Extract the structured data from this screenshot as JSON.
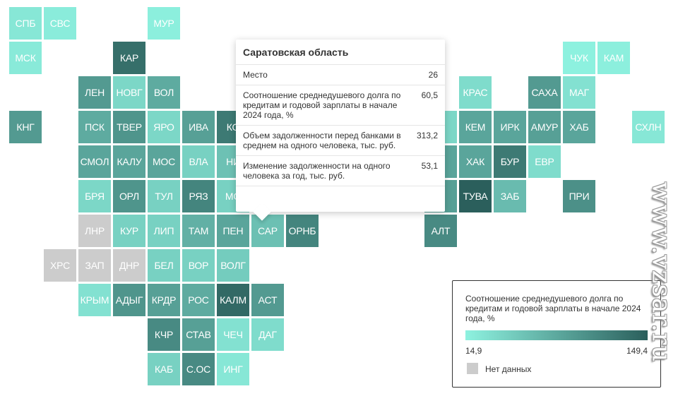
{
  "map": {
    "min_value": 14.9,
    "max_value": 149.4,
    "color_low": "#8ef2e0",
    "color_high": "#2b5f5c",
    "nodata_color": "#cccccc",
    "selected_region": "САР",
    "tiles": [
      {
        "code": "СПБ",
        "col": 0,
        "row": 0,
        "value": 25
      },
      {
        "code": "СВС",
        "col": 1,
        "row": 0,
        "value": 20
      },
      {
        "code": "МУР",
        "col": 4,
        "row": 0,
        "value": 18
      },
      {
        "code": "МСК",
        "col": 0,
        "row": 1,
        "value": 22
      },
      {
        "code": "КАР",
        "col": 3,
        "row": 1,
        "value": 135
      },
      {
        "code": "ЧУК",
        "col": 16,
        "row": 1,
        "value": 16
      },
      {
        "code": "КАМ",
        "col": 17,
        "row": 1,
        "value": 18
      },
      {
        "code": "ЛЕН",
        "col": 2,
        "row": 2,
        "value": 95
      },
      {
        "code": "НОВГ",
        "col": 3,
        "row": 2,
        "value": 40
      },
      {
        "code": "ВОЛ",
        "col": 4,
        "row": 2,
        "value": 80
      },
      {
        "code": "КРАС",
        "col": 13,
        "row": 2,
        "value": 35
      },
      {
        "code": "САХА",
        "col": 15,
        "row": 2,
        "value": 95
      },
      {
        "code": "МАГ",
        "col": 16,
        "row": 2,
        "value": 30
      },
      {
        "code": "КНГ",
        "col": 0,
        "row": 3,
        "value": 95
      },
      {
        "code": "ПСК",
        "col": 2,
        "row": 3,
        "value": 80
      },
      {
        "code": "ТВЕР",
        "col": 3,
        "row": 3,
        "value": 100
      },
      {
        "code": "ЯРО",
        "col": 4,
        "row": 3,
        "value": 40
      },
      {
        "code": "ИВА",
        "col": 5,
        "row": 3,
        "value": 90
      },
      {
        "code": "КО",
        "col": 6,
        "row": 3,
        "value": 125
      },
      {
        "code": "М",
        "col": 12,
        "row": 3,
        "value": 40
      },
      {
        "code": "КЕМ",
        "col": 13,
        "row": 3,
        "value": 85
      },
      {
        "code": "ИРК",
        "col": 14,
        "row": 3,
        "value": 85
      },
      {
        "code": "АМУР",
        "col": 15,
        "row": 3,
        "value": 90
      },
      {
        "code": "ХАБ",
        "col": 16,
        "row": 3,
        "value": 85
      },
      {
        "code": "СХЛН",
        "col": 18,
        "row": 3,
        "value": 25
      },
      {
        "code": "СМОЛ",
        "col": 2,
        "row": 4,
        "value": 85
      },
      {
        "code": "КАЛУ",
        "col": 3,
        "row": 4,
        "value": 85
      },
      {
        "code": "МОС",
        "col": 4,
        "row": 4,
        "value": 85
      },
      {
        "code": "ВЛА",
        "col": 5,
        "row": 4,
        "value": 45
      },
      {
        "code": "НИ",
        "col": 6,
        "row": 4,
        "value": 60
      },
      {
        "code": "О",
        "col": 12,
        "row": 4,
        "value": 85
      },
      {
        "code": "ХАК",
        "col": 13,
        "row": 4,
        "value": 85
      },
      {
        "code": "БУР",
        "col": 14,
        "row": 4,
        "value": 125
      },
      {
        "code": "ЕВР",
        "col": 15,
        "row": 4,
        "value": 35
      },
      {
        "code": "БРЯ",
        "col": 2,
        "row": 5,
        "value": 40
      },
      {
        "code": "ОРЛ",
        "col": 3,
        "row": 5,
        "value": 100
      },
      {
        "code": "ТУЛ",
        "col": 4,
        "row": 5,
        "value": 45
      },
      {
        "code": "РЯЗ",
        "col": 5,
        "row": 5,
        "value": 115
      },
      {
        "code": "МО",
        "col": 6,
        "row": 5,
        "value": 45
      },
      {
        "code": "К",
        "col": 12,
        "row": 5,
        "value": 90
      },
      {
        "code": "ТУВА",
        "col": 13,
        "row": 5,
        "value": 149.4
      },
      {
        "code": "ЗАБ",
        "col": 14,
        "row": 5,
        "value": 65
      },
      {
        "code": "ПРИ",
        "col": 16,
        "row": 5,
        "value": 105
      },
      {
        "code": "ЛНР",
        "col": 2,
        "row": 6,
        "value": null
      },
      {
        "code": "КУР",
        "col": 3,
        "row": 6,
        "value": 45
      },
      {
        "code": "ЛИП",
        "col": 4,
        "row": 6,
        "value": 45
      },
      {
        "code": "ТАМ",
        "col": 5,
        "row": 6,
        "value": 75
      },
      {
        "code": "ПЕН",
        "col": 6,
        "row": 6,
        "value": 85
      },
      {
        "code": "САР",
        "col": 7,
        "row": 6,
        "value": 60.5
      },
      {
        "code": "ОРНБ",
        "col": 8,
        "row": 6,
        "value": 115
      },
      {
        "code": "АЛТ",
        "col": 12,
        "row": 6,
        "value": 110
      },
      {
        "code": "ХРС",
        "col": 1,
        "row": 7,
        "value": null
      },
      {
        "code": "ЗАП",
        "col": 2,
        "row": 7,
        "value": null
      },
      {
        "code": "ДНР",
        "col": 3,
        "row": 7,
        "value": null
      },
      {
        "code": "БЕЛ",
        "col": 4,
        "row": 7,
        "value": 45
      },
      {
        "code": "ВОР",
        "col": 5,
        "row": 7,
        "value": 45
      },
      {
        "code": "ВОЛГ",
        "col": 6,
        "row": 7,
        "value": 50
      },
      {
        "code": "КРЫМ",
        "col": 2,
        "row": 8,
        "value": 30
      },
      {
        "code": "АДЫГ",
        "col": 3,
        "row": 8,
        "value": 100
      },
      {
        "code": "КРДР",
        "col": 4,
        "row": 8,
        "value": 90
      },
      {
        "code": "РОС",
        "col": 5,
        "row": 8,
        "value": 80
      },
      {
        "code": "КАЛМ",
        "col": 6,
        "row": 8,
        "value": 140
      },
      {
        "code": "АСТ",
        "col": 7,
        "row": 8,
        "value": 95
      },
      {
        "code": "КЧР",
        "col": 4,
        "row": 9,
        "value": 110
      },
      {
        "code": "СТАВ",
        "col": 5,
        "row": 9,
        "value": 90
      },
      {
        "code": "ЧЕЧ",
        "col": 6,
        "row": 9,
        "value": 30
      },
      {
        "code": "ДАГ",
        "col": 7,
        "row": 9,
        "value": 35
      },
      {
        "code": "КАБ",
        "col": 4,
        "row": 10,
        "value": 45
      },
      {
        "code": "С.ОС",
        "col": 5,
        "row": 10,
        "value": 110
      },
      {
        "code": "ИНГ",
        "col": 6,
        "row": 10,
        "value": 25
      }
    ]
  },
  "tooltip": {
    "title": "Саратовская область",
    "rows": [
      {
        "label": "Место",
        "value": "26"
      },
      {
        "label": "Соотношение среднедушевого долга по кредитам и годовой зарплаты в начале 2024 года, %",
        "value": "60,5"
      },
      {
        "label": "Объем задолженности перед банками в среднем на одного человека, тыс. руб.",
        "value": "313,2"
      },
      {
        "label": "Изменение задолженности на одного человека за год, тыс. руб.",
        "value": "53,1"
      }
    ]
  },
  "legend": {
    "title": "Соотношение среднедушевого долга по кредитам и годовой зарплаты в начале 2024 года, %",
    "min_label": "14,9",
    "max_label": "149,4",
    "nodata_label": "Нет данных"
  },
  "watermark": {
    "text": "www.vzsar.ru"
  }
}
